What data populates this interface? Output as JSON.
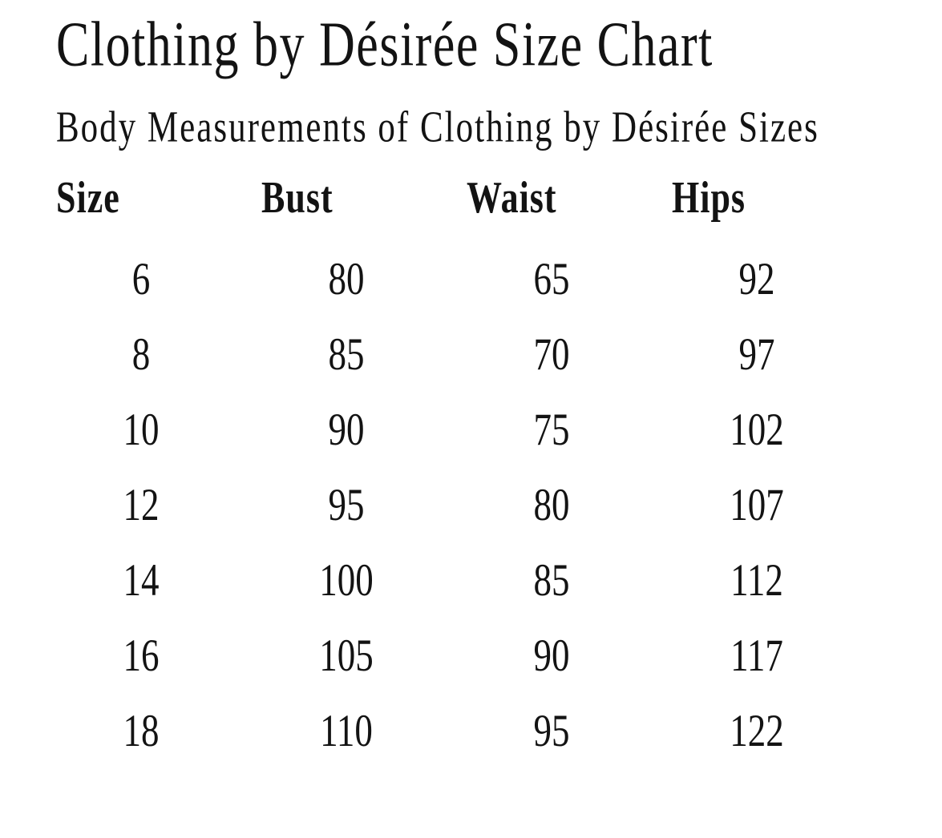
{
  "page": {
    "title": "Clothing by Désirée Size Chart",
    "subtitle": "Body Measurements of Clothing by Désirée Sizes"
  },
  "table": {
    "headers": [
      "Size",
      "Bust",
      "Waist",
      "Hips"
    ],
    "rows": [
      [
        "6",
        "80",
        "65",
        "92"
      ],
      [
        "8",
        "85",
        "70",
        "97"
      ],
      [
        "10",
        "90",
        "75",
        "102"
      ],
      [
        "12",
        "95",
        "80",
        "107"
      ],
      [
        "14",
        "100",
        "85",
        "112"
      ],
      [
        "16",
        "105",
        "90",
        "117"
      ],
      [
        "18",
        "110",
        "95",
        "122"
      ]
    ]
  },
  "colors": {
    "text": "#131313",
    "background": "#ffffff"
  }
}
